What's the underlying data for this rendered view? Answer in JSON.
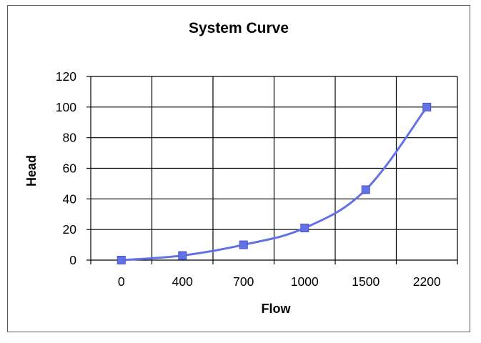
{
  "chart_data": {
    "type": "line",
    "title": "System Curve",
    "xlabel": "Flow",
    "ylabel": "Head",
    "categories": [
      "0",
      "400",
      "700",
      "1000",
      "1500",
      "2200"
    ],
    "series": [
      {
        "values": [
          0,
          3,
          10,
          21,
          46,
          100
        ]
      }
    ],
    "ylim": [
      0,
      120
    ],
    "yticks": [
      0,
      20,
      40,
      60,
      80,
      100,
      120
    ],
    "grid": true,
    "legend": "none",
    "colors": {
      "series": "#6371e6",
      "grid": "#000000",
      "frame": "#5a5a5a"
    }
  }
}
